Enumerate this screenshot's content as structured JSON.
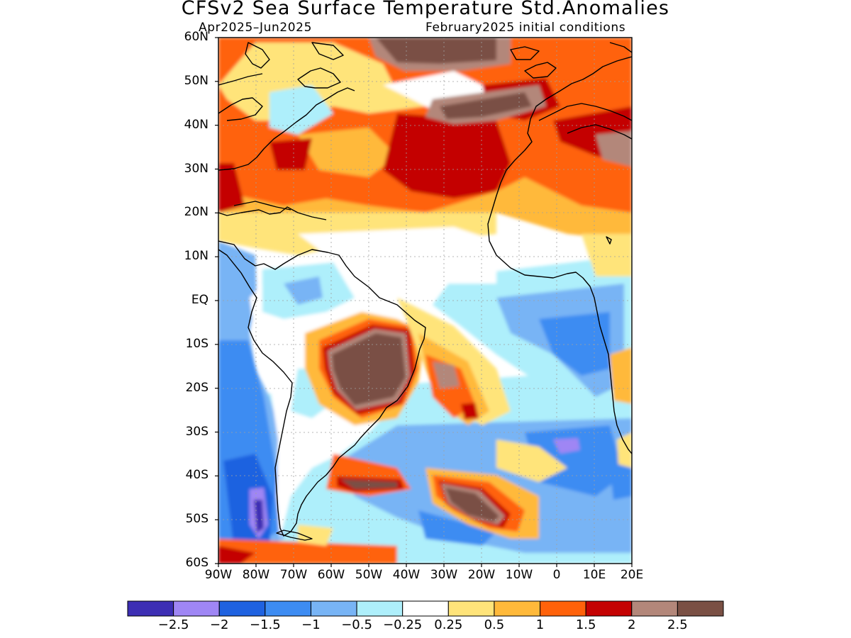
{
  "header": {
    "title": "CFSv2 Sea Surface Temperature Std.Anomalies",
    "season": "Apr2025–Jun2025",
    "initial_conditions": "February2025 initial conditions"
  },
  "map": {
    "lat_labels": [
      "60N",
      "50N",
      "40N",
      "30N",
      "20N",
      "10N",
      "EQ",
      "10S",
      "20S",
      "30S",
      "40S",
      "50S",
      "60S"
    ],
    "lon_labels": [
      "90W",
      "80W",
      "70W",
      "60W",
      "50W",
      "40W",
      "30W",
      "20W",
      "10W",
      "0",
      "10E",
      "20E"
    ],
    "lat_range": [
      -60,
      60
    ],
    "lon_range": [
      -90,
      20
    ],
    "grid": true,
    "anomaly_regions": [
      {
        "region": "North Atlantic mid-latitudes",
        "lon": -25,
        "lat": 32,
        "value": 1.7
      },
      {
        "region": "Labrador Sea",
        "lon": -40,
        "lat": 57,
        "value": 2.6
      },
      {
        "region": "Central Brazil",
        "lon": -48,
        "lat": -14,
        "value": 2.6
      },
      {
        "region": "South Atlantic 45S",
        "lon": -24,
        "lat": -46,
        "value": 2.6
      },
      {
        "region": "Southeast Pacific off Chile",
        "lon": -80,
        "lat": -48,
        "value": -2.3
      },
      {
        "region": "Tropical Atlantic",
        "lon": -10,
        "lat": 6,
        "value": 0.1
      },
      {
        "region": "Gulf of Guinea",
        "lon": 0,
        "lat": -5,
        "value": -0.7
      },
      {
        "region": "North Africa interior",
        "lon": 5,
        "lat": 25,
        "value": 0.8
      },
      {
        "region": "Mediterranean",
        "lon": 15,
        "lat": 38,
        "value": 2.1
      }
    ]
  },
  "colorbar": {
    "labels": [
      "−2.5",
      "−2",
      "−1.5",
      "−1",
      "−0.5",
      "−0.25",
      "0.25",
      "0.5",
      "1",
      "1.5",
      "2",
      "2.5"
    ],
    "colors": [
      "#3d2fb4",
      "#9f86f4",
      "#1f62e0",
      "#3d8cf2",
      "#78b4f5",
      "#aeeffb",
      "#ffffff",
      "#ffe47a",
      "#ffb93a",
      "#ff620a",
      "#c40202",
      "#b3877a",
      "#7a5044"
    ]
  }
}
